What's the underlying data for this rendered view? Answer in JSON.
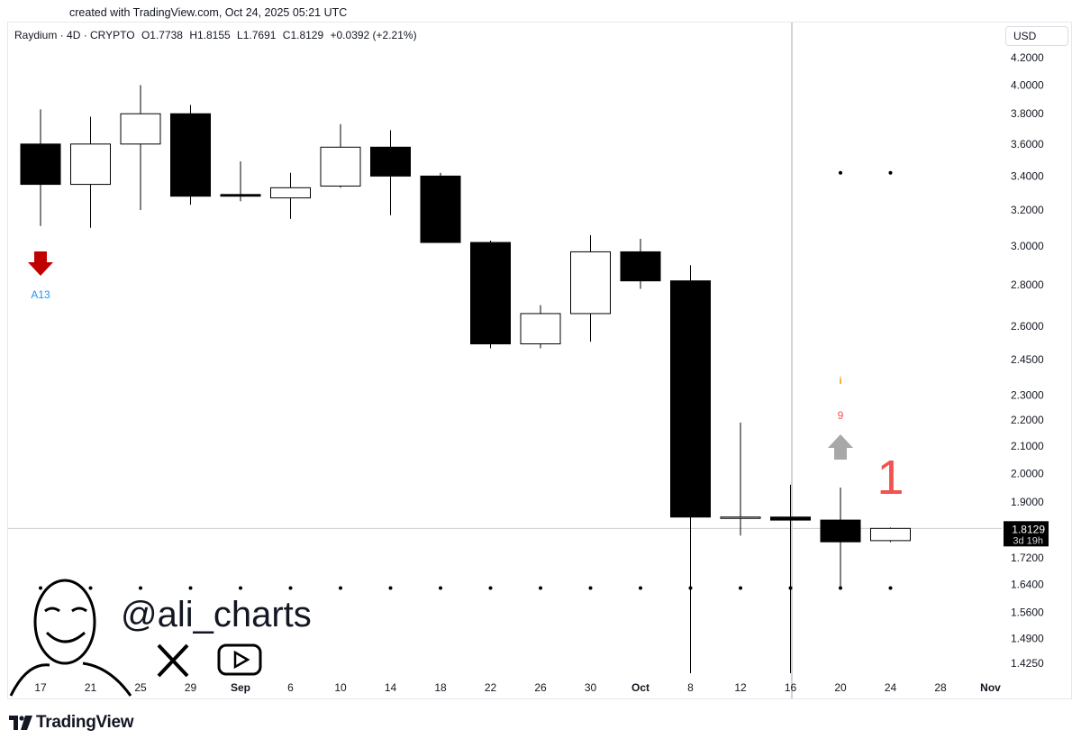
{
  "caption": "created with TradingView.com, Oct 24, 2025 05:21 UTC",
  "symbol": {
    "name": "Raydium · 4D · CRYPTO",
    "open": "O1.7738",
    "high": "H1.8155",
    "low": "L1.7691",
    "close": "C1.8129",
    "change": "+0.0392 (+2.21%)"
  },
  "currency": "USD",
  "price_label": {
    "value": "1.8129",
    "countdown": "3d 19h"
  },
  "watermark": {
    "handle": "@ali_charts"
  },
  "brand": {
    "name": "TradingView"
  },
  "colors": {
    "bear": "#000000",
    "bull": "#ffffff",
    "sell_arrow": "#c00000",
    "buy_arrow": "#a8a8a8",
    "countdown_red": "#f05350",
    "dot_orange": "#ff9800",
    "label_blue": "#2196f3"
  },
  "chart_data": {
    "type": "candlestick",
    "y_scale": "log",
    "y_ticks": [
      "4.2000",
      "4.0000",
      "3.8000",
      "3.6000",
      "3.4000",
      "3.2000",
      "3.0000",
      "2.8000",
      "2.6000",
      "2.4500",
      "2.3000",
      "2.2000",
      "2.1000",
      "2.0000",
      "1.9000",
      "1.7200",
      "1.6400",
      "1.5600",
      "1.4900",
      "1.4250"
    ],
    "x_ticks": [
      "17",
      "21",
      "25",
      "29",
      "Sep",
      "6",
      "10",
      "14",
      "18",
      "22",
      "26",
      "30",
      "Oct",
      "8",
      "12",
      "16",
      "20",
      "24",
      "28",
      "Nov"
    ],
    "candles": [
      {
        "date": "Aug 17",
        "o": 3.6,
        "h": 3.83,
        "l": 3.11,
        "c": 3.35
      },
      {
        "date": "Aug 21",
        "o": 3.35,
        "h": 3.78,
        "l": 3.1,
        "c": 3.6
      },
      {
        "date": "Aug 25",
        "o": 3.6,
        "h": 4.0,
        "l": 3.2,
        "c": 3.8
      },
      {
        "date": "Aug 29",
        "o": 3.8,
        "h": 3.86,
        "l": 3.23,
        "c": 3.28
      },
      {
        "date": "Sep 2",
        "o": 3.29,
        "h": 3.49,
        "l": 3.25,
        "c": 3.28
      },
      {
        "date": "Sep 6",
        "o": 3.27,
        "h": 3.42,
        "l": 3.15,
        "c": 3.33
      },
      {
        "date": "Sep 10",
        "o": 3.34,
        "h": 3.73,
        "l": 3.33,
        "c": 3.58
      },
      {
        "date": "Sep 14",
        "o": 3.58,
        "h": 3.69,
        "l": 3.17,
        "c": 3.4
      },
      {
        "date": "Sep 18",
        "o": 3.4,
        "h": 3.42,
        "l": 3.02,
        "c": 3.02
      },
      {
        "date": "Sep 22",
        "o": 3.02,
        "h": 3.03,
        "l": 2.5,
        "c": 2.52
      },
      {
        "date": "Sep 26",
        "o": 2.52,
        "h": 2.7,
        "l": 2.5,
        "c": 2.66
      },
      {
        "date": "Sep 30",
        "o": 2.66,
        "h": 3.06,
        "l": 2.53,
        "c": 2.97
      },
      {
        "date": "Oct 4",
        "o": 2.97,
        "h": 3.04,
        "l": 2.78,
        "c": 2.82
      },
      {
        "date": "Oct 8",
        "o": 2.82,
        "h": 2.9,
        "l": 1.4,
        "c": 1.85
      },
      {
        "date": "Oct 12",
        "o": 1.85,
        "h": 2.19,
        "l": 1.79,
        "c": 1.85
      },
      {
        "date": "Oct 16",
        "o": 1.85,
        "h": 1.96,
        "l": 1.4,
        "c": 1.84
      },
      {
        "date": "Oct 20",
        "o": 1.84,
        "h": 1.95,
        "l": 1.63,
        "c": 1.77
      },
      {
        "date": "Oct 24",
        "o": 1.7738,
        "h": 1.8155,
        "l": 1.7691,
        "c": 1.8129
      }
    ],
    "current_price": 1.8129,
    "support_dots_level": 1.63,
    "resistance_dots_level": 3.42,
    "annotations": [
      {
        "type": "sell-arrow",
        "at": "Aug 17",
        "label": "A13"
      },
      {
        "type": "buy-arrow",
        "at": "Oct 20",
        "label": "9",
        "dot": "i"
      },
      {
        "type": "countdown",
        "at": "Oct 24",
        "label": "1"
      }
    ]
  }
}
